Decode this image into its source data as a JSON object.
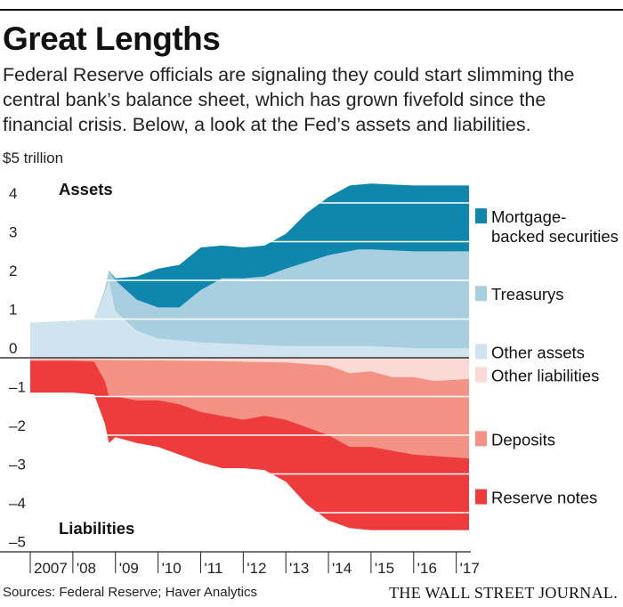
{
  "header": {
    "title": "Great Lengths",
    "subtitle": "Federal Reserve officials are signaling they could start slimming the central bank’s balance sheet, which has grown fivefold since the financial crisis. Below, a look at the Fed’s assets and liabilities."
  },
  "footer": {
    "sources": "Sources: Federal Reserve; Haver Analytics",
    "publisher": "THE WALL STREET JOURNAL."
  },
  "chart_data": {
    "type": "area",
    "unit_label": "$5 trillion",
    "ylim": [
      -5,
      5
    ],
    "xlim": [
      2007.0,
      2017.3
    ],
    "y_ticks": [
      {
        "value": 4,
        "label": "4"
      },
      {
        "value": 3,
        "label": "3"
      },
      {
        "value": 2,
        "label": "2"
      },
      {
        "value": 1,
        "label": "1"
      },
      {
        "value": 0,
        "label": "0"
      },
      {
        "value": -1,
        "label": "–1"
      },
      {
        "value": -2,
        "label": "–2"
      },
      {
        "value": -3,
        "label": "–3"
      },
      {
        "value": -4,
        "label": "–4"
      },
      {
        "value": -5,
        "label": "–5"
      }
    ],
    "x_ticks": [
      {
        "value": 2007,
        "label": "2007"
      },
      {
        "value": 2008,
        "label": "'08"
      },
      {
        "value": 2009,
        "label": "'09"
      },
      {
        "value": 2010,
        "label": "'10"
      },
      {
        "value": 2011,
        "label": "'11"
      },
      {
        "value": 2012,
        "label": "'12"
      },
      {
        "value": 2013,
        "label": "'13"
      },
      {
        "value": 2014,
        "label": "'14"
      },
      {
        "value": 2015,
        "label": "'15"
      },
      {
        "value": 2016,
        "label": "'16"
      },
      {
        "value": 2017,
        "label": "'17"
      }
    ],
    "section_labels": {
      "assets": "Assets",
      "liabilities": "Liabilities"
    },
    "assets_series": [
      {
        "name": "Other assets",
        "color": "#cfe4ef",
        "x": [
          2007.0,
          2008.0,
          2008.5,
          2008.75,
          2008.85,
          2009.0,
          2009.5,
          2010.0,
          2011.0,
          2012.0,
          2013.0,
          2014.0,
          2015.0,
          2016.0,
          2017.3
        ],
        "values": [
          0.9,
          0.95,
          1.0,
          1.7,
          2.0,
          1.2,
          0.7,
          0.5,
          0.4,
          0.35,
          0.3,
          0.3,
          0.3,
          0.25,
          0.25
        ]
      },
      {
        "name": "Treasurys",
        "color": "#a8cfe0",
        "x": [
          2007.0,
          2008.0,
          2008.5,
          2008.75,
          2008.85,
          2009.0,
          2009.5,
          2010.0,
          2010.5,
          2011.0,
          2011.5,
          2012.0,
          2012.5,
          2013.0,
          2014.0,
          2014.7,
          2015.0,
          2016.0,
          2017.3
        ],
        "values": [
          0.9,
          0.95,
          1.0,
          1.75,
          2.25,
          2.0,
          1.5,
          1.3,
          1.3,
          1.75,
          2.05,
          2.05,
          2.1,
          2.3,
          2.65,
          2.8,
          2.8,
          2.75,
          2.75
        ]
      },
      {
        "name": "Mortgage-backed securities",
        "color": "#0f87ad",
        "x": [
          2007.0,
          2008.0,
          2008.5,
          2008.75,
          2008.85,
          2009.0,
          2009.5,
          2010.0,
          2010.5,
          2011.0,
          2011.5,
          2012.0,
          2012.5,
          2013.0,
          2013.5,
          2014.0,
          2014.5,
          2015.0,
          2016.0,
          2017.3
        ],
        "values": [
          0.9,
          0.95,
          1.0,
          1.75,
          2.25,
          2.05,
          2.1,
          2.3,
          2.4,
          2.85,
          2.9,
          2.85,
          2.9,
          3.2,
          3.75,
          4.15,
          4.45,
          4.5,
          4.45,
          4.45
        ]
      }
    ],
    "liabilities_series": [
      {
        "name": "Other liabilities",
        "color": "#fbd9d4",
        "x": [
          2007.0,
          2008.0,
          2008.5,
          2009.0,
          2010.0,
          2011.0,
          2012.0,
          2013.0,
          2014.0,
          2014.5,
          2015.0,
          2015.5,
          2016.0,
          2016.5,
          2017.3
        ],
        "values": [
          -0.05,
          -0.05,
          -0.05,
          -0.06,
          -0.07,
          -0.08,
          -0.1,
          -0.12,
          -0.2,
          -0.4,
          -0.35,
          -0.5,
          -0.5,
          -0.6,
          -0.55
        ]
      },
      {
        "name": "Deposits",
        "color": "#f49286",
        "x": [
          2007.0,
          2008.0,
          2008.5,
          2008.75,
          2008.85,
          2009.0,
          2009.5,
          2010.0,
          2010.5,
          2011.0,
          2011.5,
          2012.0,
          2012.5,
          2013.0,
          2014.0,
          2014.5,
          2015.0,
          2016.0,
          2017.3
        ],
        "values": [
          -0.08,
          -0.08,
          -0.1,
          -0.6,
          -1.0,
          -1.0,
          -1.1,
          -1.1,
          -1.2,
          -1.4,
          -1.5,
          -1.6,
          -1.5,
          -1.6,
          -2.0,
          -2.3,
          -2.3,
          -2.5,
          -2.6
        ]
      },
      {
        "name": "Reserve notes",
        "color": "#ee3b3b",
        "x": [
          2007.0,
          2008.0,
          2008.5,
          2008.75,
          2008.85,
          2009.0,
          2009.5,
          2010.0,
          2010.5,
          2011.0,
          2011.5,
          2012.0,
          2012.5,
          2013.0,
          2013.5,
          2014.0,
          2014.5,
          2015.0,
          2016.0,
          2017.3
        ],
        "values": [
          -0.9,
          -0.9,
          -0.95,
          -1.7,
          -2.2,
          -2.05,
          -2.2,
          -2.3,
          -2.5,
          -2.7,
          -2.85,
          -2.85,
          -2.9,
          -3.2,
          -3.8,
          -4.2,
          -4.4,
          -4.45,
          -4.45,
          -4.45
        ]
      }
    ],
    "legend": [
      {
        "label": "Mortgage-\nbacked securities",
        "color": "#0f87ad",
        "value_y": 3.4
      },
      {
        "label": "Treasurys",
        "color": "#a8cfe0",
        "value_y": 1.65
      },
      {
        "label": "Other assets",
        "color": "#cfe4ef",
        "value_y": 0.15
      },
      {
        "label": "Other liabilities",
        "color": "#fbd9d4",
        "value_y": -0.45
      },
      {
        "label": "Deposits",
        "color": "#f49286",
        "value_y": -2.1
      },
      {
        "label": "Reserve notes",
        "color": "#ee3b3b",
        "value_y": -3.6
      }
    ],
    "grid": true
  }
}
